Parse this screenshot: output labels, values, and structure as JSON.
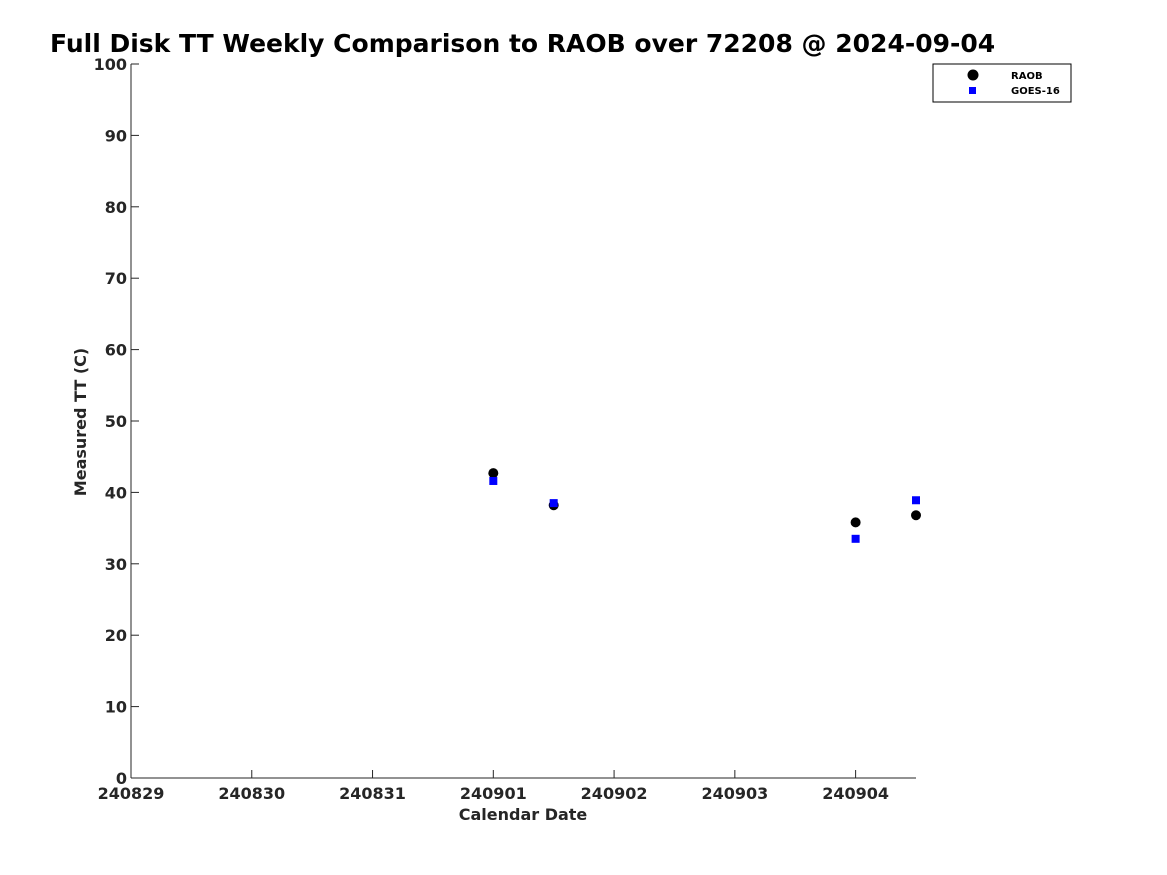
{
  "chart_data": {
    "type": "scatter",
    "title": "Full Disk TT Weekly Comparison to RAOB over 72208 @ 2024-09-04",
    "xlabel": "Calendar Date",
    "ylabel": "Measured TT (C)",
    "xlim": [
      "2024-08-29",
      "2024-09-04 12:00"
    ],
    "ylim": [
      0,
      100
    ],
    "x_ticks": [
      {
        "x": "2024-08-29",
        "label": "240829"
      },
      {
        "x": "2024-08-30",
        "label": "240830"
      },
      {
        "x": "2024-08-31",
        "label": "240831"
      },
      {
        "x": "2024-09-01",
        "label": "240901"
      },
      {
        "x": "2024-09-02",
        "label": "240902"
      },
      {
        "x": "2024-09-03",
        "label": "240903"
      },
      {
        "x": "2024-09-04",
        "label": "240904"
      }
    ],
    "y_ticks": [
      0,
      10,
      20,
      30,
      40,
      50,
      60,
      70,
      80,
      90,
      100
    ],
    "grid": false,
    "legend_position": "top-right",
    "series": [
      {
        "name": "RAOB",
        "marker": "circle",
        "color": "#000000",
        "points": [
          {
            "x": "2024-09-01 00:00",
            "y": 42.7
          },
          {
            "x": "2024-09-01 12:00",
            "y": 38.2
          },
          {
            "x": "2024-09-04 00:00",
            "y": 35.8
          },
          {
            "x": "2024-09-04 12:00",
            "y": 36.8
          }
        ]
      },
      {
        "name": "GOES-16",
        "marker": "square",
        "color": "#0000ff",
        "points": [
          {
            "x": "2024-09-01 00:00",
            "y": 41.6
          },
          {
            "x": "2024-09-01 12:00",
            "y": 38.5
          },
          {
            "x": "2024-09-04 00:00",
            "y": 33.5
          },
          {
            "x": "2024-09-04 12:00",
            "y": 38.9
          }
        ]
      }
    ]
  }
}
